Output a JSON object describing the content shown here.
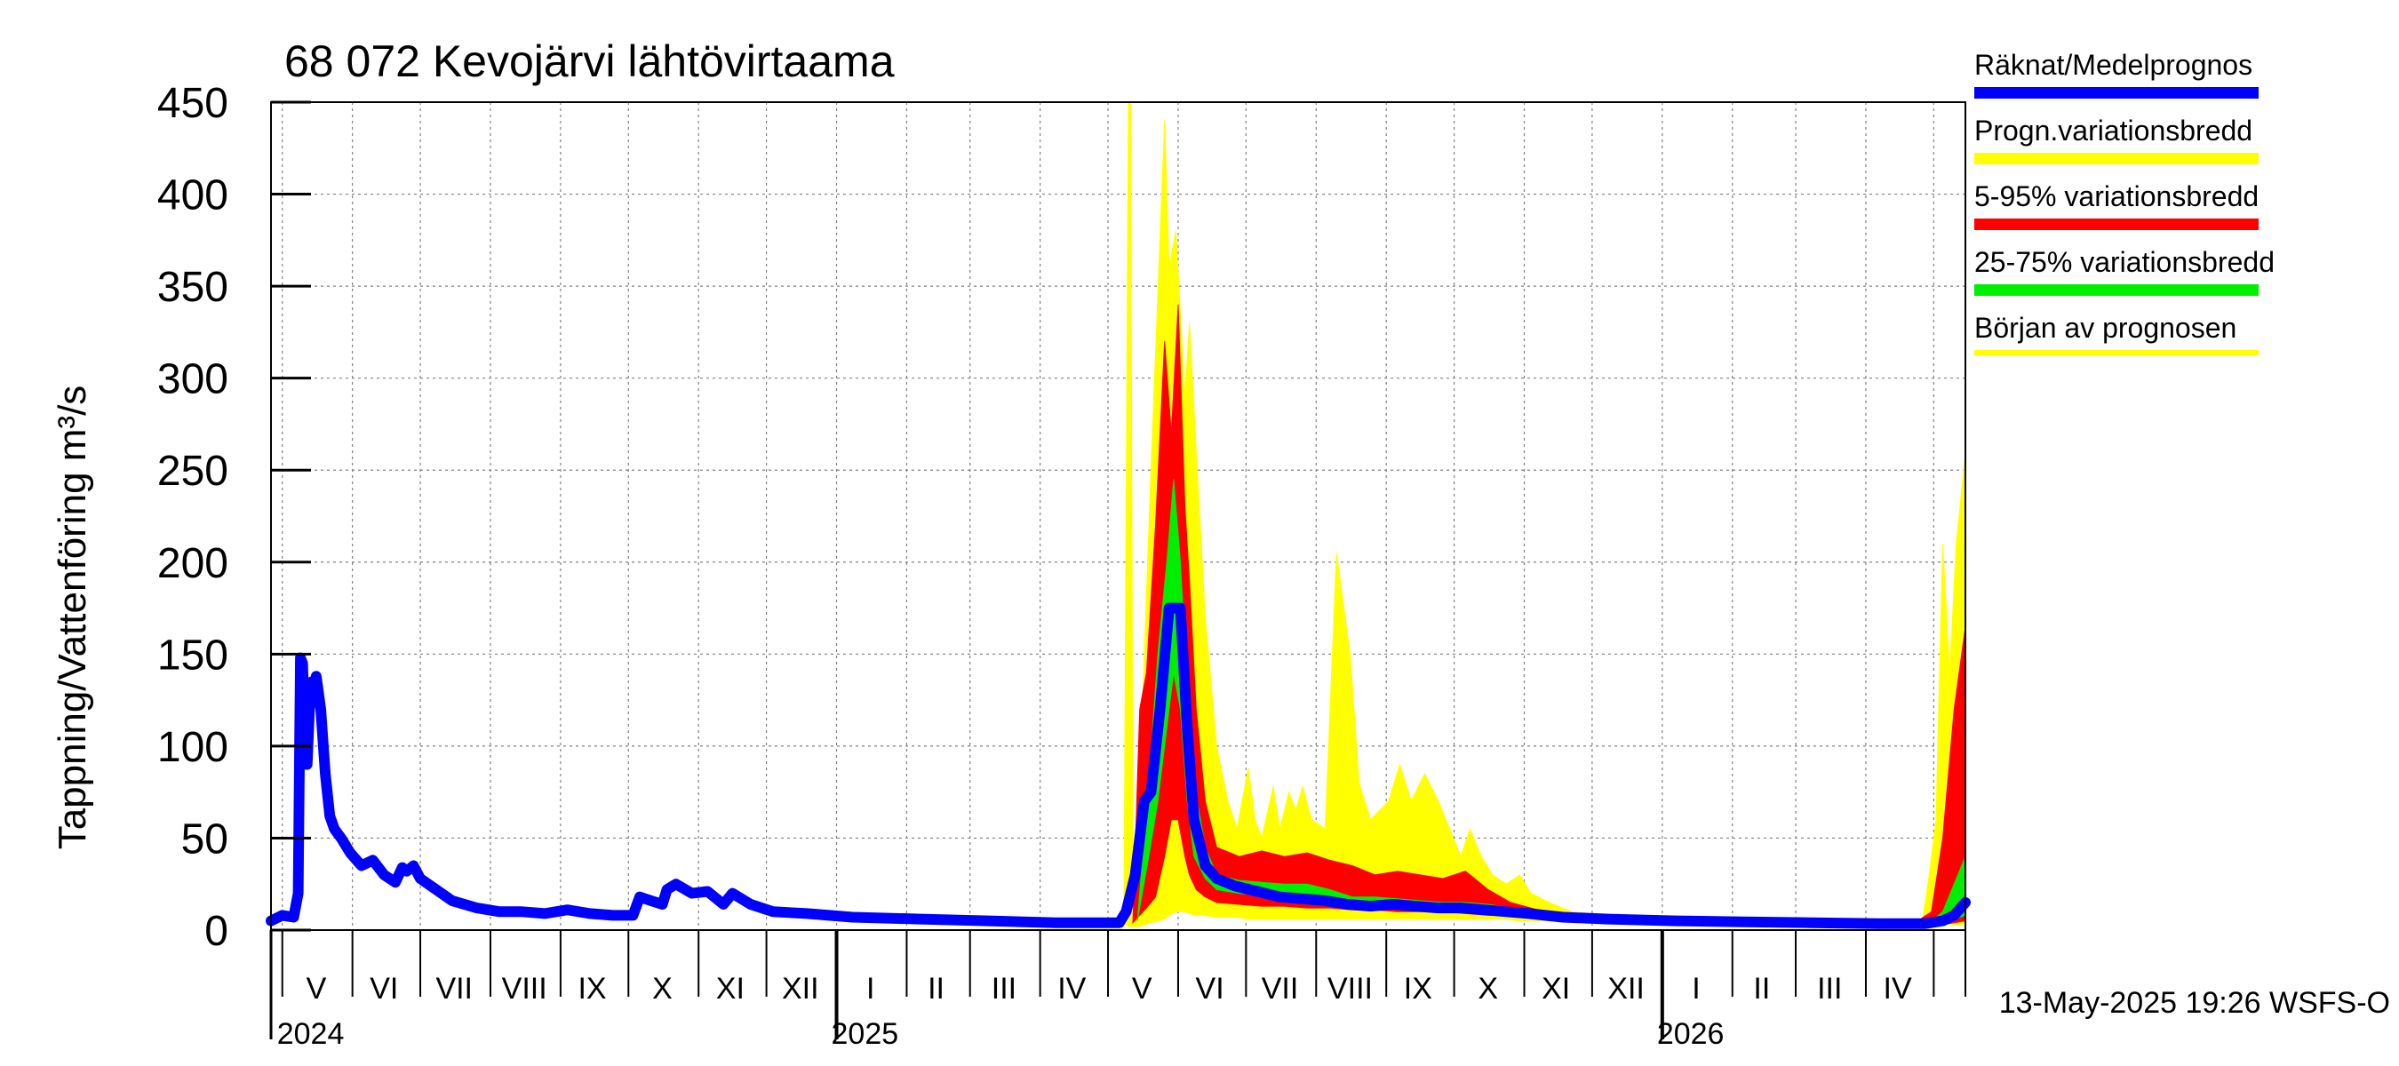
{
  "chart_data": {
    "type": "area",
    "title": "68 072 Kevojärvi lähtövirtaama",
    "ylabel": "Tappning/Vattenföring m³/s",
    "ylim": [
      0,
      450
    ],
    "yticks": [
      0,
      50,
      100,
      150,
      200,
      250,
      300,
      350,
      400,
      450
    ],
    "x_range": [
      "2024-04-26",
      "2026-05-15"
    ],
    "grid": true,
    "legend_position": "right",
    "month_labels": [
      {
        "label": "V",
        "date": "2024-05-16"
      },
      {
        "label": "VI",
        "date": "2024-06-15"
      },
      {
        "label": "VII",
        "date": "2024-07-16"
      },
      {
        "label": "VIII",
        "date": "2024-08-16"
      },
      {
        "label": "IX",
        "date": "2024-09-15"
      },
      {
        "label": "X",
        "date": "2024-10-16"
      },
      {
        "label": "XI",
        "date": "2024-11-15"
      },
      {
        "label": "XII",
        "date": "2024-12-16"
      },
      {
        "label": "I",
        "date": "2025-01-16"
      },
      {
        "label": "II",
        "date": "2025-02-14"
      },
      {
        "label": "III",
        "date": "2025-03-16"
      },
      {
        "label": "IV",
        "date": "2025-04-15"
      },
      {
        "label": "V",
        "date": "2025-05-16"
      },
      {
        "label": "VI",
        "date": "2025-06-15"
      },
      {
        "label": "VII",
        "date": "2025-07-16"
      },
      {
        "label": "VIII",
        "date": "2025-08-16"
      },
      {
        "label": "IX",
        "date": "2025-09-15"
      },
      {
        "label": "X",
        "date": "2025-10-16"
      },
      {
        "label": "XI",
        "date": "2025-11-15"
      },
      {
        "label": "XII",
        "date": "2025-12-16"
      },
      {
        "label": "I",
        "date": "2026-01-16"
      },
      {
        "label": "II",
        "date": "2026-02-14"
      },
      {
        "label": "III",
        "date": "2026-03-16"
      },
      {
        "label": "IV",
        "date": "2026-04-15"
      }
    ],
    "year_labels": [
      {
        "label": "2024",
        "date": "2024-05-01"
      },
      {
        "label": "2025",
        "date": "2025-01-01"
      },
      {
        "label": "2026",
        "date": "2026-01-01"
      }
    ],
    "forecast_start": "2025-05-13",
    "legend": [
      {
        "label": "Räknat/Medelprognos",
        "color": "#0000ff"
      },
      {
        "label": "Progn.variationsbredd",
        "color": "#ffff00"
      },
      {
        "label": "5-95% variationsbredd",
        "color": "#ff0000"
      },
      {
        "label": "25-75% variationsbredd",
        "color": "#00ee00"
      },
      {
        "label": "Början av prognosen",
        "color": "#ffff00"
      }
    ],
    "series": [
      {
        "name": "Räknat/Medelprognos",
        "color": "#0000ff",
        "points": [
          [
            "2024-04-26",
            5
          ],
          [
            "2024-05-01",
            8
          ],
          [
            "2024-05-06",
            7
          ],
          [
            "2024-05-08",
            20
          ],
          [
            "2024-05-09",
            148
          ],
          [
            "2024-05-10",
            145
          ],
          [
            "2024-05-11",
            100
          ],
          [
            "2024-05-12",
            90
          ],
          [
            "2024-05-13",
            120
          ],
          [
            "2024-05-14",
            135
          ],
          [
            "2024-05-15",
            130
          ],
          [
            "2024-05-16",
            138
          ],
          [
            "2024-05-18",
            120
          ],
          [
            "2024-05-20",
            85
          ],
          [
            "2024-05-22",
            62
          ],
          [
            "2024-05-24",
            55
          ],
          [
            "2024-05-27",
            50
          ],
          [
            "2024-05-31",
            42
          ],
          [
            "2024-06-05",
            35
          ],
          [
            "2024-06-10",
            38
          ],
          [
            "2024-06-15",
            30
          ],
          [
            "2024-06-20",
            26
          ],
          [
            "2024-06-23",
            34
          ],
          [
            "2024-06-25",
            32
          ],
          [
            "2024-06-28",
            35
          ],
          [
            "2024-07-01",
            28
          ],
          [
            "2024-07-08",
            22
          ],
          [
            "2024-07-15",
            16
          ],
          [
            "2024-07-26",
            12
          ],
          [
            "2024-08-05",
            10
          ],
          [
            "2024-08-15",
            10
          ],
          [
            "2024-08-25",
            9
          ],
          [
            "2024-09-04",
            11
          ],
          [
            "2024-09-14",
            9
          ],
          [
            "2024-09-24",
            8
          ],
          [
            "2024-10-03",
            8
          ],
          [
            "2024-10-06",
            18
          ],
          [
            "2024-10-11",
            16
          ],
          [
            "2024-10-16",
            14
          ],
          [
            "2024-10-18",
            22
          ],
          [
            "2024-10-22",
            25
          ],
          [
            "2024-10-29",
            20
          ],
          [
            "2024-11-05",
            21
          ],
          [
            "2024-11-12",
            14
          ],
          [
            "2024-11-16",
            20
          ],
          [
            "2024-11-24",
            14
          ],
          [
            "2024-12-04",
            10
          ],
          [
            "2024-12-19",
            9
          ],
          [
            "2025-01-08",
            7
          ],
          [
            "2025-02-07",
            6
          ],
          [
            "2025-03-09",
            5
          ],
          [
            "2025-04-08",
            4
          ],
          [
            "2025-04-28",
            4
          ],
          [
            "2025-05-06",
            4
          ],
          [
            "2025-05-09",
            10
          ],
          [
            "2025-05-13",
            30
          ],
          [
            "2025-05-17",
            70
          ],
          [
            "2025-05-20",
            75
          ],
          [
            "2025-05-24",
            120
          ],
          [
            "2025-05-28",
            175
          ],
          [
            "2025-06-02",
            175
          ],
          [
            "2025-06-05",
            110
          ],
          [
            "2025-06-08",
            60
          ],
          [
            "2025-06-13",
            35
          ],
          [
            "2025-06-18",
            28
          ],
          [
            "2025-06-26",
            24
          ],
          [
            "2025-07-06",
            21
          ],
          [
            "2025-07-16",
            18
          ],
          [
            "2025-07-26",
            17
          ],
          [
            "2025-08-05",
            16
          ],
          [
            "2025-08-15",
            14
          ],
          [
            "2025-08-25",
            13
          ],
          [
            "2025-09-04",
            14
          ],
          [
            "2025-09-14",
            13
          ],
          [
            "2025-09-24",
            12
          ],
          [
            "2025-10-04",
            12
          ],
          [
            "2025-10-14",
            11
          ],
          [
            "2025-10-24",
            10
          ],
          [
            "2025-11-03",
            9
          ],
          [
            "2025-11-18",
            7
          ],
          [
            "2025-12-08",
            6
          ],
          [
            "2026-01-07",
            5
          ],
          [
            "2026-02-06",
            4.5
          ],
          [
            "2026-03-08",
            4
          ],
          [
            "2026-04-07",
            3.5
          ],
          [
            "2026-04-27",
            3.5
          ],
          [
            "2026-05-05",
            5
          ],
          [
            "2026-05-10",
            8
          ],
          [
            "2026-05-15",
            15
          ]
        ]
      },
      {
        "name": "Progn.variationsbredd",
        "color": "#ffff00",
        "points": [
          [
            "2025-05-08",
            4,
            4
          ],
          [
            "2025-05-10",
            2,
            450
          ],
          [
            "2025-05-11",
            2,
            450
          ],
          [
            "2025-05-12",
            2,
            40
          ],
          [
            "2025-05-15",
            2,
            80
          ],
          [
            "2025-05-20",
            4,
            250
          ],
          [
            "2025-05-26",
            6,
            440
          ],
          [
            "2025-05-28",
            8,
            360
          ],
          [
            "2025-05-31",
            10,
            380
          ],
          [
            "2025-06-04",
            10,
            290
          ],
          [
            "2025-06-06",
            9,
            330
          ],
          [
            "2025-06-09",
            8,
            260
          ],
          [
            "2025-06-13",
            8,
            170
          ],
          [
            "2025-06-18",
            7,
            100
          ],
          [
            "2025-06-23",
            7,
            70
          ],
          [
            "2025-06-27",
            7,
            55
          ],
          [
            "2025-07-02",
            6,
            88
          ],
          [
            "2025-07-05",
            6,
            60
          ],
          [
            "2025-07-08",
            6,
            50
          ],
          [
            "2025-07-13",
            6,
            78
          ],
          [
            "2025-07-16",
            6,
            55
          ],
          [
            "2025-07-20",
            6,
            75
          ],
          [
            "2025-07-23",
            6,
            65
          ],
          [
            "2025-07-26",
            6,
            78
          ],
          [
            "2025-07-30",
            6,
            60
          ],
          [
            "2025-08-05",
            6,
            55
          ],
          [
            "2025-08-10",
            6,
            205
          ],
          [
            "2025-08-16",
            6,
            150
          ],
          [
            "2025-08-20",
            6,
            80
          ],
          [
            "2025-08-25",
            6,
            60
          ],
          [
            "2025-09-02",
            6,
            70
          ],
          [
            "2025-09-07",
            6,
            90
          ],
          [
            "2025-09-12",
            6,
            70
          ],
          [
            "2025-09-18",
            6,
            85
          ],
          [
            "2025-09-24",
            6,
            70
          ],
          [
            "2025-10-04",
            6,
            40
          ],
          [
            "2025-10-08",
            6,
            55
          ],
          [
            "2025-10-13",
            6,
            40
          ],
          [
            "2025-10-18",
            6,
            30
          ],
          [
            "2025-10-24",
            6,
            25
          ],
          [
            "2025-10-30",
            5,
            30
          ],
          [
            "2025-11-04",
            5,
            20
          ],
          [
            "2025-11-12",
            5,
            15
          ],
          [
            "2025-11-22",
            5,
            10
          ],
          [
            "2025-12-07",
            4,
            8
          ],
          [
            "2026-01-06",
            4,
            6
          ],
          [
            "2026-02-05",
            3,
            5
          ],
          [
            "2026-03-07",
            3,
            4.5
          ],
          [
            "2026-04-06",
            3,
            4
          ],
          [
            "2026-04-26",
            3,
            5
          ],
          [
            "2026-04-29",
            3,
            30
          ],
          [
            "2026-05-02",
            3,
            60
          ],
          [
            "2026-05-05",
            3,
            210
          ],
          [
            "2026-05-08",
            3,
            140
          ],
          [
            "2026-05-11",
            3,
            210
          ],
          [
            "2026-05-15",
            3,
            260
          ]
        ]
      },
      {
        "name": "5-95% variationsbredd",
        "color": "#ff0000",
        "points": [
          [
            "2025-05-12",
            4,
            4
          ],
          [
            "2025-05-15",
            8,
            120
          ],
          [
            "2025-05-18",
            12,
            140
          ],
          [
            "2025-05-22",
            18,
            220
          ],
          [
            "2025-05-26",
            40,
            320
          ],
          [
            "2025-05-29",
            60,
            270
          ],
          [
            "2025-06-01",
            60,
            340
          ],
          [
            "2025-06-04",
            40,
            230
          ],
          [
            "2025-06-06",
            30,
            190
          ],
          [
            "2025-06-09",
            22,
            120
          ],
          [
            "2025-06-13",
            18,
            70
          ],
          [
            "2025-06-18",
            15,
            45
          ],
          [
            "2025-06-28",
            14,
            40
          ],
          [
            "2025-07-08",
            13,
            43
          ],
          [
            "2025-07-18",
            13,
            40
          ],
          [
            "2025-07-28",
            12,
            42
          ],
          [
            "2025-08-07",
            12,
            38
          ],
          [
            "2025-08-17",
            11,
            35
          ],
          [
            "2025-08-27",
            11,
            30
          ],
          [
            "2025-09-06",
            10,
            32
          ],
          [
            "2025-09-16",
            10,
            30
          ],
          [
            "2025-09-26",
            10,
            28
          ],
          [
            "2025-10-06",
            9,
            32
          ],
          [
            "2025-10-16",
            8,
            22
          ],
          [
            "2025-10-26",
            8,
            15
          ],
          [
            "2025-11-10",
            7,
            10
          ],
          [
            "2025-12-05",
            5,
            7
          ],
          [
            "2026-01-04",
            4,
            6
          ],
          [
            "2026-02-03",
            3.5,
            5
          ],
          [
            "2026-03-05",
            3,
            4.5
          ],
          [
            "2026-04-04",
            3,
            4
          ],
          [
            "2026-04-24",
            3,
            5
          ],
          [
            "2026-04-30",
            3,
            10
          ],
          [
            "2026-05-05",
            3,
            50
          ],
          [
            "2026-05-10",
            4,
            120
          ],
          [
            "2026-05-15",
            5,
            165
          ]
        ]
      },
      {
        "name": "25-75% variationsbredd",
        "color": "#00ee00",
        "points": [
          [
            "2025-05-14",
            5,
            5
          ],
          [
            "2025-05-19",
            40,
            80
          ],
          [
            "2025-05-23",
            70,
            150
          ],
          [
            "2025-05-27",
            110,
            200
          ],
          [
            "2025-05-30",
            140,
            245
          ],
          [
            "2025-06-02",
            120,
            200
          ],
          [
            "2025-06-05",
            70,
            130
          ],
          [
            "2025-06-08",
            40,
            80
          ],
          [
            "2025-06-13",
            28,
            45
          ],
          [
            "2025-06-18",
            22,
            30
          ],
          [
            "2025-06-28",
            20,
            27
          ],
          [
            "2025-07-08",
            19,
            26
          ],
          [
            "2025-07-18",
            17,
            25
          ],
          [
            "2025-07-28",
            16,
            25
          ],
          [
            "2025-08-07",
            14,
            22
          ],
          [
            "2025-08-17",
            13,
            18
          ],
          [
            "2025-08-27",
            12,
            18
          ],
          [
            "2025-09-06",
            12,
            17
          ],
          [
            "2025-09-16",
            11,
            16
          ],
          [
            "2025-09-26",
            11,
            15
          ],
          [
            "2025-10-06",
            10,
            15
          ],
          [
            "2025-10-16",
            9,
            14
          ],
          [
            "2025-10-26",
            8,
            12
          ],
          [
            "2025-11-10",
            7,
            9
          ],
          [
            "2025-12-05",
            5,
            7
          ],
          [
            "2026-01-04",
            4.5,
            5.5
          ],
          [
            "2026-02-03",
            4,
            5
          ],
          [
            "2026-03-05",
            3.5,
            4.5
          ],
          [
            "2026-04-04",
            3.5,
            4
          ],
          [
            "2026-04-29",
            3.5,
            4
          ],
          [
            "2026-05-05",
            4,
            10
          ],
          [
            "2026-05-10",
            6,
            25
          ],
          [
            "2026-05-15",
            8,
            40
          ]
        ]
      }
    ]
  },
  "footer": {
    "timestamp": "13-May-2025 19:26 WSFS-O"
  }
}
